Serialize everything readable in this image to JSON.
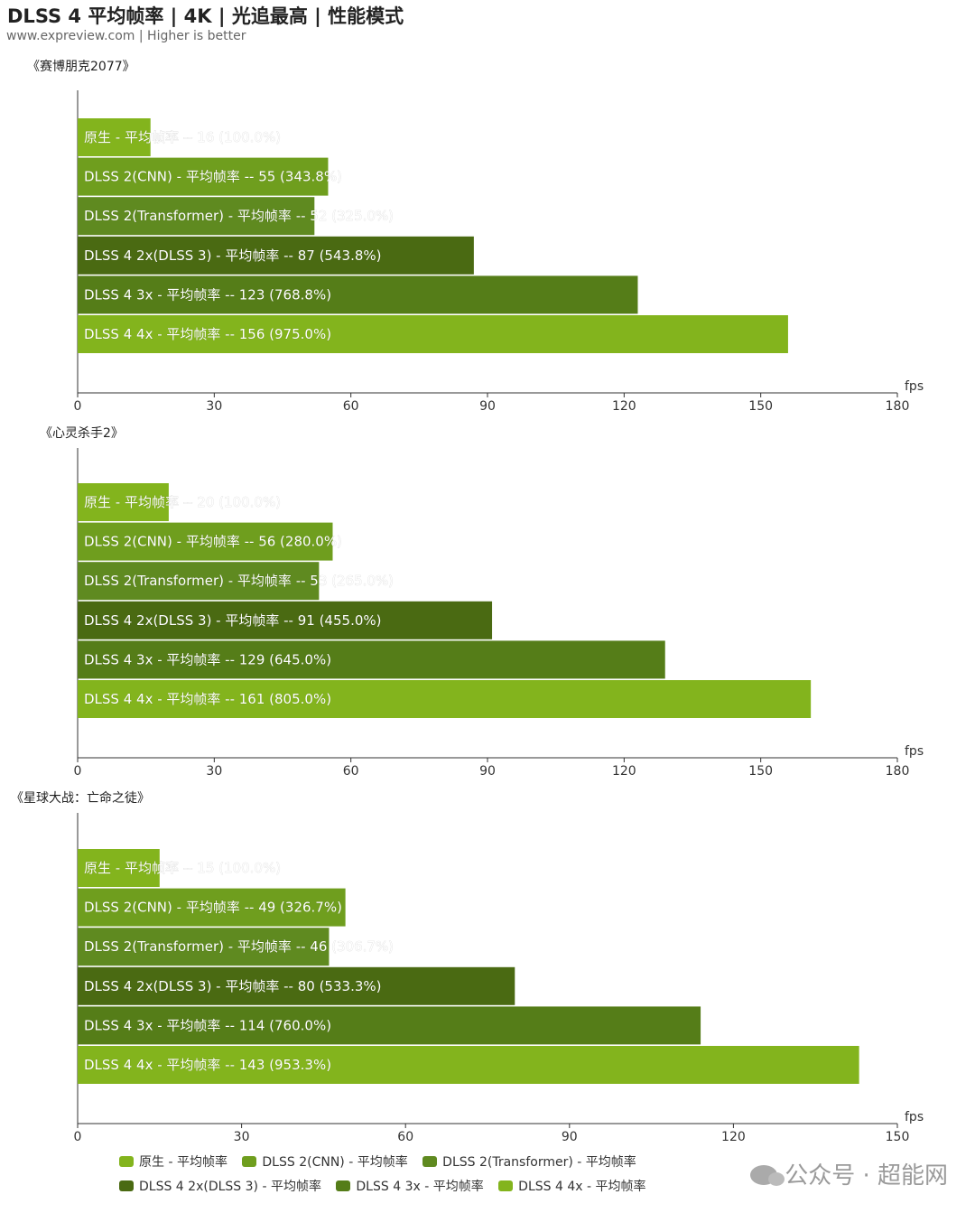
{
  "header": {
    "title": "DLSS 4 平均帧率 | 4K | 光追最高 | 性能模式",
    "subtitle": "www.expreview.com | Higher is better"
  },
  "colors": {
    "bright_green": "#83b41d",
    "mid_green": "#5f8a20",
    "dark_green": "#4a6a12",
    "axis": "#333333"
  },
  "chart_data": [
    {
      "type": "bar",
      "orientation": "horizontal",
      "title": "《赛博朋克2077》",
      "xlabel": "fps",
      "xlim": [
        0,
        180
      ],
      "xticks": [
        "0",
        "30",
        "60",
        "90",
        "120",
        "150",
        "180"
      ],
      "categories": [
        "原生 - 平均帧率",
        "DLSS 2(CNN)  - 平均帧率",
        "DLSS 2(Transformer) - 平均帧率",
        "DLSS 4 2x(DLSS 3)  - 平均帧率",
        "DLSS 4 3x  - 平均帧率",
        "DLSS 4 4x  - 平均帧率"
      ],
      "values": [
        16,
        55,
        52,
        87,
        123,
        156
      ],
      "data_labels": [
        "原生 - 平均帧率  --  16 (100.0%)",
        "DLSS 2(CNN)  - 平均帧率  --  55 (343.8%)",
        "DLSS 2(Transformer) - 平均帧率  --  52 (325.0%)",
        "DLSS 4 2x(DLSS 3)  - 平均帧率  --  87 (543.8%)",
        "DLSS 4 3x  - 平均帧率  --  123 (768.8%)",
        "DLSS 4 4x  - 平均帧率  --  156 (975.0%)"
      ]
    },
    {
      "type": "bar",
      "orientation": "horizontal",
      "title": "《心灵杀手2》",
      "xlabel": "fps",
      "xlim": [
        0,
        180
      ],
      "xticks": [
        "0",
        "30",
        "60",
        "90",
        "120",
        "150",
        "180"
      ],
      "categories": [
        "原生 - 平均帧率",
        "DLSS 2(CNN)  - 平均帧率",
        "DLSS 2(Transformer) - 平均帧率",
        "DLSS 4 2x(DLSS 3)  - 平均帧率",
        "DLSS 4 3x  - 平均帧率",
        "DLSS 4 4x  - 平均帧率"
      ],
      "values": [
        20,
        56,
        53,
        91,
        129,
        161
      ],
      "data_labels": [
        "原生 - 平均帧率  --  20 (100.0%)",
        "DLSS 2(CNN)  - 平均帧率  --  56 (280.0%)",
        "DLSS 2(Transformer) - 平均帧率  --  53 (265.0%)",
        "DLSS 4 2x(DLSS 3)  - 平均帧率  --  91 (455.0%)",
        "DLSS 4 3x  - 平均帧率  --  129 (645.0%)",
        "DLSS 4 4x  - 平均帧率  --  161 (805.0%)"
      ]
    },
    {
      "type": "bar",
      "orientation": "horizontal",
      "title": "《星球大战：亡命之徒》",
      "xlabel": "fps",
      "xlim": [
        0,
        150
      ],
      "xticks": [
        "0",
        "30",
        "60",
        "90",
        "120",
        "150"
      ],
      "categories": [
        "原生 - 平均帧率",
        "DLSS 2(CNN)  - 平均帧率",
        "DLSS 2(Transformer) - 平均帧率",
        "DLSS 4 2x(DLSS 3)  - 平均帧率",
        "DLSS 4 3x  - 平均帧率",
        "DLSS 4 4x  - 平均帧率"
      ],
      "values": [
        15,
        49,
        46,
        80,
        114,
        143
      ],
      "data_labels": [
        "原生 - 平均帧率  --  15 (100.0%)",
        "DLSS 2(CNN)  - 平均帧率  --  49 (326.7%)",
        "DLSS 2(Transformer) - 平均帧率  --  46 (306.7%)",
        "DLSS 4 2x(DLSS 3)  - 平均帧率  --  80 (533.3%)",
        "DLSS 4 3x  - 平均帧率  --  114 (760.0%)",
        "DLSS 4 4x  - 平均帧率  --  143 (953.3%)"
      ]
    }
  ],
  "legend": {
    "placement": "bottom",
    "items": [
      {
        "label": "原生 - 平均帧率",
        "color": "#83b41d"
      },
      {
        "label": "DLSS 2(CNN)  - 平均帧率",
        "color": "#6f9e1e"
      },
      {
        "label": "DLSS 2(Transformer) - 平均帧率",
        "color": "#5f8a20"
      },
      {
        "label": "DLSS 4 2x(DLSS 3)  - 平均帧率",
        "color": "#4a6a12"
      },
      {
        "label": "DLSS 4 3x  - 平均帧率",
        "color": "#557d18"
      },
      {
        "label": "DLSS 4 4x  - 平均帧率",
        "color": "#83b41d"
      }
    ]
  },
  "bar_colors": [
    "#83b41d",
    "#6f9e1e",
    "#5f8a20",
    "#4a6a12",
    "#557d18",
    "#83b41d"
  ],
  "watermark": {
    "text": "公众号 · 超能网",
    "icon": "wechat-icon"
  }
}
